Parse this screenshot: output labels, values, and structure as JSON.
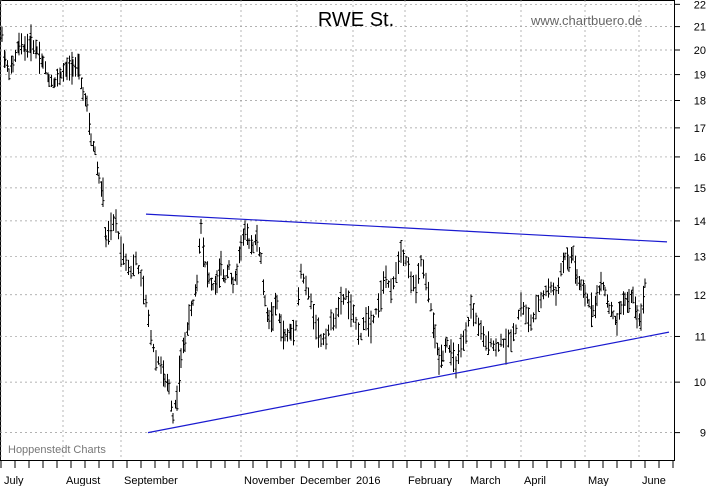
{
  "chart_data": {
    "type": "ohlc",
    "title": "RWE St.",
    "watermark": "www.chartbuero.de",
    "credit": "Hoppenstedt Charts",
    "y_scale": "log",
    "ylim": [
      8.5,
      22.2
    ],
    "y_ticks": [
      9,
      10,
      11,
      12,
      13,
      14,
      15,
      16,
      17,
      18,
      19,
      20,
      21,
      22
    ],
    "x_labels": [
      "July",
      "August",
      "September",
      "November",
      "December",
      "2016",
      "February",
      "March",
      "April",
      "May",
      "June"
    ],
    "grid": true,
    "colors": {
      "bars": "#000000",
      "trendlines": "#1a1ad0",
      "grid": "#999999"
    },
    "series_anchor_points": [
      [
        1,
        20.6
      ],
      [
        4,
        19.6
      ],
      [
        8,
        19.1
      ],
      [
        12,
        19.4
      ],
      [
        18,
        20.2
      ],
      [
        24,
        20.1
      ],
      [
        30,
        20.3
      ],
      [
        36,
        20.0
      ],
      [
        42,
        19.5
      ],
      [
        48,
        18.8
      ],
      [
        54,
        18.7
      ],
      [
        60,
        19.0
      ],
      [
        66,
        19.2
      ],
      [
        72,
        19.4
      ],
      [
        78,
        19.2
      ],
      [
        82,
        18.3
      ],
      [
        86,
        17.8
      ],
      [
        90,
        16.6
      ],
      [
        94,
        16.2
      ],
      [
        98,
        15.3
      ],
      [
        102,
        14.8
      ],
      [
        105,
        13.4
      ],
      [
        110,
        13.8
      ],
      [
        115,
        14.0
      ],
      [
        120,
        13.2
      ],
      [
        125,
        12.9
      ],
      [
        130,
        12.6
      ],
      [
        135,
        12.9
      ],
      [
        140,
        12.4
      ],
      [
        145,
        11.8
      ],
      [
        150,
        11.0
      ],
      [
        155,
        10.5
      ],
      [
        160,
        10.4
      ],
      [
        164,
        10.0
      ],
      [
        168,
        9.9
      ],
      [
        172,
        9.3
      ],
      [
        176,
        9.7
      ],
      [
        180,
        10.5
      ],
      [
        184,
        10.9
      ],
      [
        188,
        11.4
      ],
      [
        192,
        11.8
      ],
      [
        196,
        12.3
      ],
      [
        200,
        13.9
      ],
      [
        204,
        12.8
      ],
      [
        208,
        12.4
      ],
      [
        212,
        12.2
      ],
      [
        216,
        12.3
      ],
      [
        220,
        12.7
      ],
      [
        224,
        12.4
      ],
      [
        228,
        12.8
      ],
      [
        232,
        12.2
      ],
      [
        236,
        12.6
      ],
      [
        240,
        13.3
      ],
      [
        244,
        13.7
      ],
      [
        248,
        13.4
      ],
      [
        252,
        13.3
      ],
      [
        256,
        13.5
      ],
      [
        260,
        12.9
      ],
      [
        264,
        11.8
      ],
      [
        268,
        11.4
      ],
      [
        272,
        11.5
      ],
      [
        276,
        11.8
      ],
      [
        280,
        11.2
      ],
      [
        284,
        11.0
      ],
      [
        290,
        11.1
      ],
      [
        295,
        11.3
      ],
      [
        300,
        12.6
      ],
      [
        305,
        12.2
      ],
      [
        310,
        11.8
      ],
      [
        315,
        11.3
      ],
      [
        320,
        10.9
      ],
      [
        325,
        11.0
      ],
      [
        330,
        11.3
      ],
      [
        335,
        11.5
      ],
      [
        340,
        11.8
      ],
      [
        345,
        12.0
      ],
      [
        350,
        11.6
      ],
      [
        355,
        11.3
      ],
      [
        360,
        11.0
      ],
      [
        365,
        11.5
      ],
      [
        370,
        11.3
      ],
      [
        375,
        11.6
      ],
      [
        380,
        12.0
      ],
      [
        385,
        12.5
      ],
      [
        390,
        12.0
      ],
      [
        395,
        12.6
      ],
      [
        400,
        13.2
      ],
      [
        405,
        12.9
      ],
      [
        410,
        12.4
      ],
      [
        415,
        12.1
      ],
      [
        420,
        12.9
      ],
      [
        425,
        12.3
      ],
      [
        430,
        11.7
      ],
      [
        434,
        11.0
      ],
      [
        438,
        10.5
      ],
      [
        442,
        10.6
      ],
      [
        446,
        10.9
      ],
      [
        450,
        10.6
      ],
      [
        455,
        10.4
      ],
      [
        460,
        10.7
      ],
      [
        465,
        11.0
      ],
      [
        470,
        11.7
      ],
      [
        475,
        11.4
      ],
      [
        480,
        11.1
      ],
      [
        485,
        10.8
      ],
      [
        490,
        10.9
      ],
      [
        495,
        10.7
      ],
      [
        500,
        10.9
      ],
      [
        505,
        10.8
      ],
      [
        510,
        11.0
      ],
      [
        515,
        11.2
      ],
      [
        520,
        11.8
      ],
      [
        525,
        11.5
      ],
      [
        530,
        11.3
      ],
      [
        535,
        11.6
      ],
      [
        540,
        11.9
      ],
      [
        545,
        12.1
      ],
      [
        550,
        12.2
      ],
      [
        555,
        12.0
      ],
      [
        560,
        12.6
      ],
      [
        564,
        13.0
      ],
      [
        568,
        12.8
      ],
      [
        572,
        13.1
      ],
      [
        576,
        12.4
      ],
      [
        580,
        12.2
      ],
      [
        584,
        12.0
      ],
      [
        588,
        11.8
      ],
      [
        592,
        11.6
      ],
      [
        596,
        11.9
      ],
      [
        600,
        12.3
      ],
      [
        604,
        12.1
      ],
      [
        608,
        11.7
      ],
      [
        612,
        11.5
      ],
      [
        616,
        11.3
      ],
      [
        620,
        11.7
      ],
      [
        624,
        11.9
      ],
      [
        628,
        11.8
      ],
      [
        632,
        12.0
      ],
      [
        636,
        11.5
      ],
      [
        640,
        11.4
      ],
      [
        644,
        12.3
      ],
      [
        646,
        12.7
      ]
    ],
    "trendline_upper": [
      [
        145,
        14.2
      ],
      [
        666,
        13.4
      ]
    ],
    "trendline_lower": [
      [
        147,
        9.0
      ],
      [
        668,
        11.1
      ]
    ]
  }
}
